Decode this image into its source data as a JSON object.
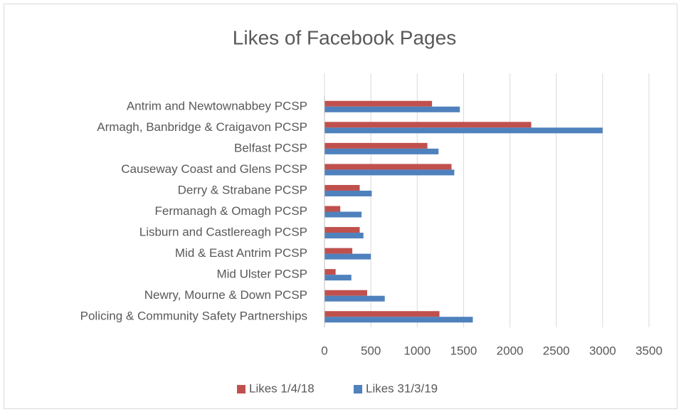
{
  "chart_data": {
    "type": "hbar",
    "title": "Likes of Facebook Pages",
    "categories": [
      "Antrim and Newtownabbey PCSP",
      "Armagh, Banbridge & Craigavon PCSP",
      "Belfast PCSP",
      "Causeway Coast and Glens PCSP",
      "Derry & Strabane PCSP",
      "Fermanagh & Omagh PCSP",
      "Lisburn and Castlereagh PCSP",
      "Mid & East Antrim PCSP",
      "Mid Ulster PCSP",
      "Newry, Mourne & Down PCSP",
      "Policing & Community Safety Partnerships"
    ],
    "series": [
      {
        "name": "Likes 1/4/18",
        "color": "#c0504d",
        "values": [
          1160,
          2230,
          1110,
          1370,
          380,
          170,
          380,
          300,
          120,
          460,
          1240
        ]
      },
      {
        "name": "Likes 31/3/19",
        "color": "#4f81bd",
        "values": [
          1460,
          3000,
          1230,
          1400,
          510,
          400,
          420,
          500,
          290,
          650,
          1600
        ]
      }
    ],
    "xlim": [
      0,
      3500
    ],
    "xticks": [
      0,
      500,
      1000,
      1500,
      2000,
      2500,
      3000,
      3500
    ],
    "grid": true,
    "legend": "bottom"
  }
}
